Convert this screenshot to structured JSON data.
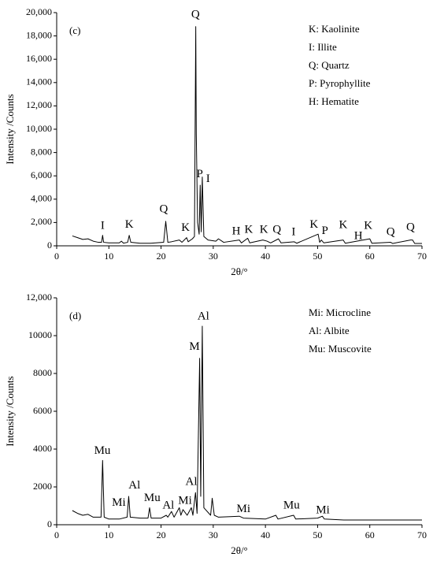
{
  "chart_data": [
    {
      "type": "line",
      "title": "(c)",
      "xlabel": "2θ/°",
      "ylabel": "Intensity /Counts",
      "color": "#000000",
      "legend_entries": [
        "K: Kaolinite",
        "I: Illite",
        "Q: Quartz",
        "P: Pyrophyllite",
        "H: Hematite"
      ],
      "x": [
        3,
        4,
        5,
        6,
        7,
        8,
        8.6,
        8.8,
        9.0,
        10,
        12,
        12.4,
        12.8,
        13.6,
        13.9,
        14.2,
        16,
        18,
        20.5,
        20.9,
        21.3,
        22,
        23.5,
        24,
        24.9,
        25.2,
        26,
        26.4,
        26.65,
        26.75,
        27.0,
        27.3,
        27.5,
        27.7,
        27.9,
        28.2,
        29,
        30.5,
        31,
        32,
        35,
        35.4,
        36.6,
        37,
        39.5,
        40.3,
        41,
        42.5,
        43,
        45.5,
        46,
        50.1,
        50.4,
        50.7,
        51.2,
        54.9,
        55.3,
        60.0,
        60.4,
        64,
        64.4,
        67.8,
        68.2,
        68.6,
        70
      ],
      "values": [
        850,
        700,
        550,
        600,
        400,
        300,
        300,
        900,
        300,
        250,
        250,
        400,
        230,
        300,
        900,
        300,
        220,
        220,
        300,
        2100,
        300,
        350,
        500,
        300,
        700,
        350,
        600,
        800,
        18800,
        9600,
        2000,
        1000,
        5200,
        1200,
        5900,
        800,
        500,
        400,
        600,
        300,
        500,
        250,
        650,
        250,
        500,
        400,
        250,
        600,
        250,
        350,
        220,
        1000,
        300,
        500,
        250,
        500,
        220,
        600,
        220,
        300,
        200,
        500,
        500,
        200,
        200
      ],
      "xlim": [
        0,
        70
      ],
      "xticks": [
        0,
        10,
        20,
        30,
        40,
        50,
        60,
        70
      ],
      "ylim": [
        0,
        20000
      ],
      "yticks": [
        0,
        {
          "value": 2000,
          "label": "2,000"
        },
        {
          "value": 4000,
          "label": "4,000"
        },
        {
          "value": 6000,
          "label": "6,000"
        },
        {
          "value": 8000,
          "label": "8,000"
        },
        {
          "value": 10000,
          "label": "10,000"
        },
        {
          "value": 12000,
          "label": "12,000"
        },
        {
          "value": 14000,
          "label": "14,000"
        },
        {
          "value": 16000,
          "label": "16,000"
        },
        {
          "value": 18000,
          "label": "18,000"
        },
        {
          "value": 20000,
          "label": "20,000"
        }
      ],
      "annotations": [
        {
          "text": "I",
          "x": 8.8,
          "y": 1700
        },
        {
          "text": "K",
          "x": 13.9,
          "y": 1800
        },
        {
          "text": "Q",
          "x": 20.5,
          "y": 3100
        },
        {
          "text": "K",
          "x": 24.7,
          "y": 1500
        },
        {
          "text": "Q",
          "x": 26.6,
          "y": 19800
        },
        {
          "text": "P",
          "x": 27.4,
          "y": 6100
        },
        {
          "text": "I",
          "x": 29.0,
          "y": 5700
        },
        {
          "text": "H",
          "x": 34.4,
          "y": 1200
        },
        {
          "text": "K",
          "x": 36.8,
          "y": 1350
        },
        {
          "text": "K",
          "x": 39.7,
          "y": 1350
        },
        {
          "text": "Q",
          "x": 42.2,
          "y": 1350
        },
        {
          "text": "I",
          "x": 45.4,
          "y": 1150
        },
        {
          "text": "K",
          "x": 49.3,
          "y": 1800
        },
        {
          "text": "P",
          "x": 51.4,
          "y": 1250
        },
        {
          "text": "K",
          "x": 54.9,
          "y": 1750
        },
        {
          "text": "H",
          "x": 57.8,
          "y": 800
        },
        {
          "text": "K",
          "x": 59.7,
          "y": 1700
        },
        {
          "text": "Q",
          "x": 64.0,
          "y": 1150
        },
        {
          "text": "Q",
          "x": 67.8,
          "y": 1550
        }
      ]
    },
    {
      "type": "line",
      "title": "(d)",
      "xlabel": "2θ/°",
      "ylabel": "Intensity /Counts",
      "color": "#000000",
      "legend_entries": [
        "Mi: Microcline",
        "Al: Albite",
        "Mu: Muscovite"
      ],
      "x": [
        3,
        4,
        5,
        6,
        7,
        8.5,
        8.8,
        9.1,
        10,
        12,
        13.5,
        13.8,
        14.1,
        16,
        17.5,
        17.8,
        18.1,
        20,
        21,
        21.3,
        22,
        22.5,
        23.5,
        23.8,
        24.2,
        25,
        25.8,
        26.1,
        26.6,
        26.9,
        27.4,
        27.6,
        27.9,
        28.2,
        29.5,
        29.8,
        30.2,
        31,
        35,
        35.8,
        40,
        42,
        42.4,
        45.4,
        45.8,
        50,
        50.9,
        51.3,
        55,
        60,
        65,
        70
      ],
      "values": [
        750,
        600,
        500,
        550,
        400,
        400,
        3400,
        400,
        300,
        300,
        400,
        1500,
        400,
        350,
        350,
        900,
        350,
        350,
        500,
        400,
        700,
        400,
        900,
        500,
        800,
        500,
        900,
        500,
        1700,
        600,
        8800,
        1500,
        10500,
        900,
        500,
        1400,
        500,
        400,
        450,
        350,
        300,
        500,
        300,
        500,
        300,
        350,
        450,
        300,
        250,
        250,
        250,
        250
      ],
      "xlim": [
        0,
        70
      ],
      "xticks": [
        0,
        10,
        20,
        30,
        40,
        50,
        60,
        70
      ],
      "ylim": [
        0,
        12000
      ],
      "yticks": [
        0,
        2000,
        4000,
        6000,
        8000,
        10000,
        {
          "value": 12000,
          "label": "12,000"
        }
      ],
      "annotations": [
        {
          "text": "Mu",
          "x": 8.75,
          "y": 3900
        },
        {
          "text": "Mi",
          "x": 11.9,
          "y": 1150
        },
        {
          "text": "Al",
          "x": 14.9,
          "y": 2050
        },
        {
          "text": "Mu",
          "x": 18.3,
          "y": 1400
        },
        {
          "text": "Al",
          "x": 21.4,
          "y": 1000
        },
        {
          "text": "Mi",
          "x": 24.6,
          "y": 1250
        },
        {
          "text": "Al",
          "x": 25.8,
          "y": 2250
        },
        {
          "text": "M",
          "x": 26.4,
          "y": 9400
        },
        {
          "text": "Al",
          "x": 28.1,
          "y": 11000
        },
        {
          "text": "Mi",
          "x": 35.8,
          "y": 800
        },
        {
          "text": "Mu",
          "x": 45.0,
          "y": 1000
        },
        {
          "text": "Mi",
          "x": 51.0,
          "y": 750
        }
      ]
    }
  ]
}
